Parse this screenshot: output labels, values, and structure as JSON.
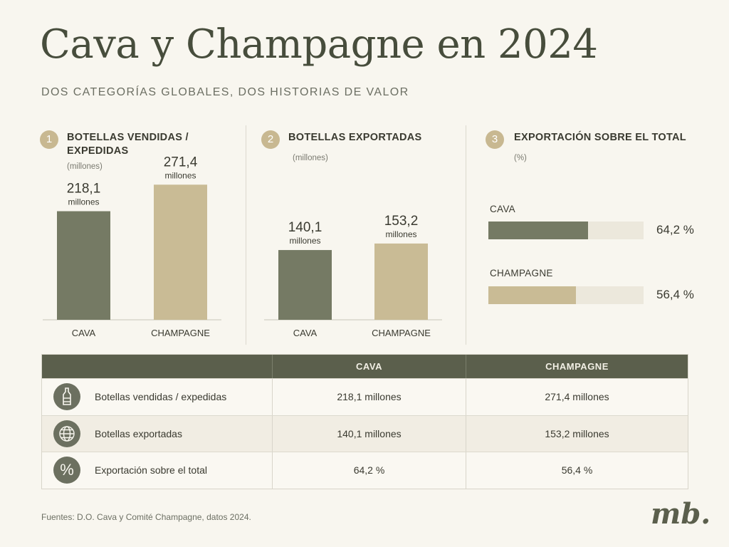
{
  "header": {
    "title": "Cava y Champagne en 2024",
    "subtitle": "DOS CATEGORÍAS GLOBALES, DOS HISTORIAS DE VALOR"
  },
  "colors": {
    "cava": "#757a64",
    "champagne": "#c9bb95",
    "track": "#ece8dc"
  },
  "chart_data": [
    {
      "type": "bar",
      "number": "1",
      "title": "BOTELLAS VENDIDAS / EXPEDIDAS",
      "unit": "(millones)",
      "categories": [
        "CAVA",
        "CHAMPAGNE"
      ],
      "values": [
        218.1,
        271.4
      ],
      "value_labels": [
        "218,1",
        "271,4"
      ],
      "value_unit": "millones",
      "ylim": [
        0,
        330
      ]
    },
    {
      "type": "bar",
      "number": "2",
      "title": "BOTELLAS EXPORTADAS",
      "unit": "(millones)",
      "categories": [
        "CAVA",
        "CHAMPAGNE"
      ],
      "values": [
        140.1,
        153.2
      ],
      "value_labels": [
        "140,1",
        "153,2"
      ],
      "value_unit": "millones",
      "ylim": [
        0,
        330
      ]
    },
    {
      "type": "bar",
      "orientation": "horizontal",
      "number": "3",
      "title": "EXPORTACIÓN SOBRE EL TOTAL",
      "unit": "(%)",
      "categories": [
        "CAVA",
        "CHAMPAGNE"
      ],
      "values": [
        64.2,
        56.4
      ],
      "value_labels": [
        "64,2 %",
        "56,4 %"
      ],
      "xlim": [
        0,
        100
      ]
    }
  ],
  "table": {
    "headers": [
      "",
      "CAVA",
      "CHAMPAGNE"
    ],
    "rows": [
      {
        "icon": "bottle-icon",
        "label": "Botellas vendidas / expedidas",
        "cava": "218,1 millones",
        "champagne": "271,4 millones"
      },
      {
        "icon": "globe-icon",
        "label": "Botellas exportadas",
        "cava": "140,1 millones",
        "champagne": "153,2 millones"
      },
      {
        "icon": "percent-icon",
        "label": "Exportación sobre el total",
        "cava": "64,2 %",
        "champagne": "56,4 %"
      }
    ]
  },
  "footer": {
    "source": "Fuentes: D.O. Cava y Comité Champagne, datos 2024.",
    "logo": "mb."
  }
}
